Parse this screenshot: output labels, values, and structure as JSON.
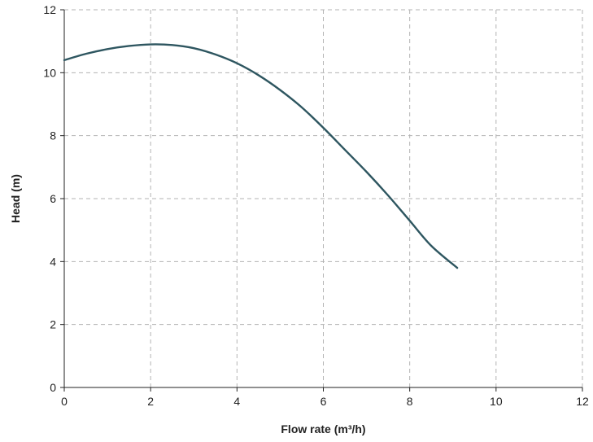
{
  "chart_data": {
    "type": "line",
    "title": "",
    "xlabel": "Flow rate (m³/h)",
    "ylabel": "Head (m)",
    "xlim": [
      0,
      12
    ],
    "ylim": [
      0,
      12
    ],
    "xticks": [
      0,
      2,
      4,
      6,
      8,
      10,
      12
    ],
    "yticks": [
      0,
      2,
      4,
      6,
      8,
      10,
      12
    ],
    "grid": true,
    "grid_style": "dashed",
    "legend": "none",
    "series": [
      {
        "color": "#2e5660",
        "x": [
          0,
          0.5,
          1,
          1.5,
          2,
          2.5,
          3,
          3.5,
          4,
          4.5,
          5,
          5.5,
          6,
          6.5,
          7,
          7.5,
          8,
          8.5,
          9.1
        ],
        "y": [
          10.4,
          10.6,
          10.75,
          10.85,
          10.9,
          10.88,
          10.78,
          10.58,
          10.3,
          9.92,
          9.45,
          8.9,
          8.25,
          7.55,
          6.85,
          6.1,
          5.3,
          4.5,
          3.8
        ]
      }
    ]
  }
}
